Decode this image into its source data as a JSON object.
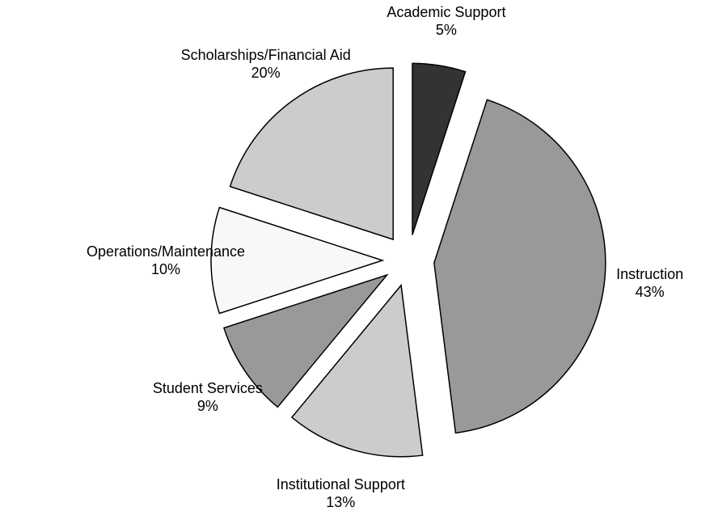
{
  "chart_data": {
    "type": "pie",
    "categories": [
      "Academic Support",
      "Instruction",
      "Institutional Support",
      "Student Services",
      "Operations/Maintenance",
      "Scholarships/Financial Aid"
    ],
    "values": [
      5,
      43,
      13,
      9,
      10,
      20
    ],
    "value_labels": [
      "5%",
      "43%",
      "13%",
      "9%",
      "10%",
      "20%"
    ],
    "colors": [
      "#333333",
      "#999999",
      "#cccccc",
      "#999999",
      "#f8f8f8",
      "#cccccc"
    ]
  }
}
